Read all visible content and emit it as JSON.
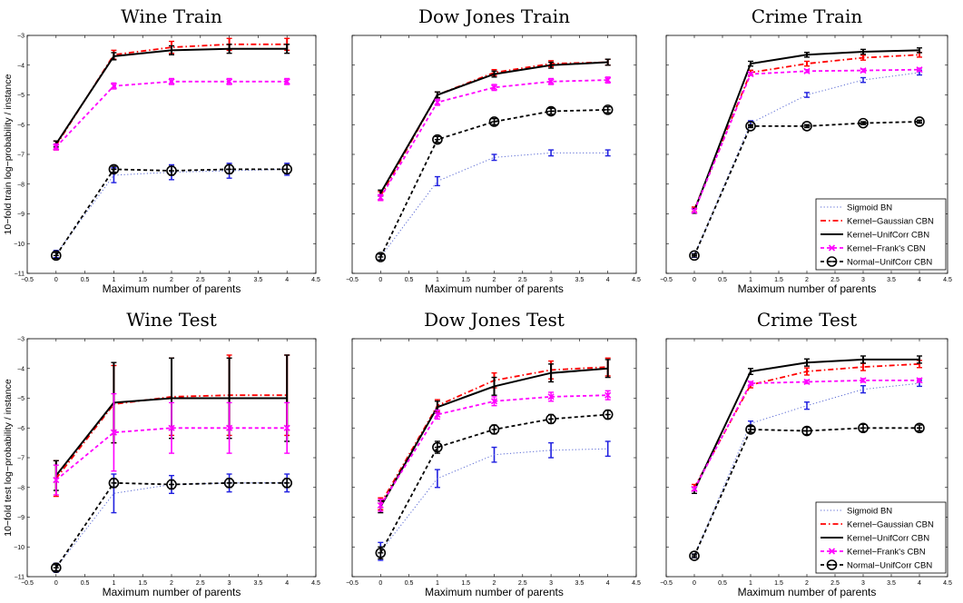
{
  "chart_data": [
    {
      "type": "line",
      "title": "Wine Train",
      "xlabel": "Maximum number of parents",
      "ylabel": "10−fold train log−probability / instance",
      "xlim": [
        -0.5,
        4.5
      ],
      "ylim": [
        -11,
        -3
      ],
      "x": [
        0,
        1,
        2,
        3,
        4
      ],
      "xtick_labels": [
        "−0.5",
        "0",
        "0.5",
        "1",
        "1.5",
        "2",
        "2.5",
        "3",
        "3.5",
        "4",
        "4.5"
      ],
      "ytick_labels": [
        "−11",
        "−10",
        "−9",
        "−8",
        "−7",
        "−6",
        "−5",
        "−4",
        "−3"
      ],
      "show_legend": false,
      "series": [
        {
          "name": "Sigmoid BN",
          "values": [
            -10.35,
            -7.7,
            -7.6,
            -7.55,
            -7.5
          ],
          "errors": [
            0.12,
            0.25,
            0.25,
            0.25,
            0.2
          ]
        },
        {
          "name": "Kernel−Gaussian CBN",
          "values": [
            -6.7,
            -3.65,
            -3.4,
            -3.3,
            -3.3
          ],
          "errors": [
            0.15,
            0.15,
            0.2,
            0.2,
            0.2
          ]
        },
        {
          "name": "Kernel−UnifCorr CBN",
          "values": [
            -6.65,
            -3.7,
            -3.5,
            -3.45,
            -3.45
          ],
          "errors": [
            0.1,
            0.12,
            0.15,
            0.15,
            0.15
          ]
        },
        {
          "name": "Kernel−Frank's CBN",
          "values": [
            -6.75,
            -4.7,
            -4.55,
            -4.55,
            -4.55
          ],
          "errors": [
            0.1,
            0.1,
            0.1,
            0.1,
            0.1
          ]
        },
        {
          "name": "Normal−UnifCorr CBN",
          "values": [
            -10.4,
            -7.5,
            -7.55,
            -7.5,
            -7.5
          ],
          "errors": [
            0.1,
            0.1,
            0.15,
            0.15,
            0.15
          ]
        }
      ]
    },
    {
      "type": "line",
      "title": "Dow Jones Train",
      "xlabel": "Maximum number of parents",
      "ylabel": "",
      "xlim": [
        -0.5,
        4.5
      ],
      "ylim": [
        0,
        8
      ],
      "x": [
        0,
        1,
        2,
        3,
        4
      ],
      "xtick_labels": [
        "−0.5",
        "0",
        "0.5",
        "1",
        "1.5",
        "2",
        "2.5",
        "3",
        "3.5",
        "4",
        "4.5"
      ],
      "ytick_labels": [],
      "show_legend": false,
      "series": [
        {
          "name": "Sigmoid BN",
          "values": [
            0.55,
            3.1,
            3.9,
            4.05,
            4.05
          ],
          "errors": [
            0.1,
            0.15,
            0.1,
            0.1,
            0.1
          ]
        },
        {
          "name": "Kernel−Gaussian CBN",
          "values": [
            2.6,
            6.0,
            6.75,
            7.05,
            7.1
          ],
          "errors": [
            0.15,
            0.1,
            0.1,
            0.1,
            0.1
          ]
        },
        {
          "name": "Kernel−UnifCorr CBN",
          "values": [
            2.7,
            6.0,
            6.7,
            7.0,
            7.1
          ],
          "errors": [
            0.1,
            0.1,
            0.1,
            0.1,
            0.1
          ]
        },
        {
          "name": "Kernel−Frank's CBN",
          "values": [
            2.55,
            5.75,
            6.25,
            6.45,
            6.5
          ],
          "errors": [
            0.1,
            0.1,
            0.1,
            0.1,
            0.1
          ]
        },
        {
          "name": "Normal−UnifCorr CBN",
          "values": [
            0.55,
            4.5,
            5.1,
            5.45,
            5.5
          ],
          "errors": [
            0.1,
            0.1,
            0.1,
            0.1,
            0.1
          ]
        }
      ]
    },
    {
      "type": "line",
      "title": "Crime Train",
      "xlabel": "Maximum number of parents",
      "ylabel": "",
      "xlim": [
        -0.5,
        4.5
      ],
      "ylim": [
        0,
        8
      ],
      "x": [
        0,
        1,
        2,
        3,
        4
      ],
      "xtick_labels": [
        "−0.5",
        "0",
        "0.5",
        "1",
        "1.5",
        "2",
        "2.5",
        "3",
        "3.5",
        "4",
        "4.5"
      ],
      "ytick_labels": [],
      "show_legend": true,
      "legend_position": "bottom-right",
      "series": [
        {
          "name": "Sigmoid BN",
          "values": [
            0.6,
            5.05,
            6.0,
            6.5,
            6.75
          ],
          "errors": [
            0.06,
            0.08,
            0.08,
            0.08,
            0.08
          ]
        },
        {
          "name": "Kernel−Gaussian CBN",
          "values": [
            2.15,
            6.75,
            7.05,
            7.25,
            7.35
          ],
          "errors": [
            0.08,
            0.08,
            0.08,
            0.08,
            0.08
          ]
        },
        {
          "name": "Kernel−UnifCorr CBN",
          "values": [
            2.1,
            7.05,
            7.35,
            7.45,
            7.5
          ],
          "errors": [
            0.08,
            0.08,
            0.08,
            0.08,
            0.08
          ]
        },
        {
          "name": "Kernel−Frank's CBN",
          "values": [
            2.1,
            6.7,
            6.8,
            6.82,
            6.85
          ],
          "errors": [
            0.05,
            0.05,
            0.05,
            0.05,
            0.05
          ]
        },
        {
          "name": "Normal−UnifCorr CBN",
          "values": [
            0.6,
            4.95,
            4.95,
            5.05,
            5.1
          ],
          "errors": [
            0.05,
            0.05,
            0.05,
            0.05,
            0.05
          ]
        }
      ]
    },
    {
      "type": "line",
      "title": "Wine Test",
      "xlabel": "Maximum number of parents",
      "ylabel": "10−fold test log−probability / instance",
      "xlim": [
        -0.5,
        4.5
      ],
      "ylim": [
        -11,
        -3
      ],
      "x": [
        0,
        1,
        2,
        3,
        4
      ],
      "xtick_labels": [
        "−0.5",
        "0",
        "0.5",
        "1",
        "1.5",
        "2",
        "2.5",
        "3",
        "3.5",
        "4",
        "4.5"
      ],
      "ytick_labels": [
        "−11",
        "−10",
        "−9",
        "−8",
        "−7",
        "−6",
        "−5",
        "−4",
        "−3"
      ],
      "show_legend": false,
      "series": [
        {
          "name": "Sigmoid BN",
          "values": [
            -10.7,
            -8.2,
            -7.9,
            -7.85,
            -7.85
          ],
          "errors": [
            0.15,
            0.65,
            0.3,
            0.3,
            0.3
          ]
        },
        {
          "name": "Kernel−Gaussian CBN",
          "values": [
            -7.7,
            -5.2,
            -4.95,
            -4.9,
            -4.9
          ],
          "errors": [
            0.6,
            1.3,
            1.3,
            1.35,
            1.35
          ]
        },
        {
          "name": "Kernel−UnifCorr CBN",
          "values": [
            -7.6,
            -5.15,
            -5.0,
            -5.0,
            -5.0
          ],
          "errors": [
            0.5,
            1.35,
            1.35,
            1.35,
            1.45
          ]
        },
        {
          "name": "Kernel−Frank's CBN",
          "values": [
            -7.75,
            -6.15,
            -6.0,
            -6.0,
            -6.0
          ],
          "errors": [
            0.5,
            1.3,
            0.85,
            0.85,
            0.85
          ]
        },
        {
          "name": "Normal−UnifCorr CBN",
          "values": [
            -10.7,
            -7.85,
            -7.9,
            -7.85,
            -7.85
          ],
          "errors": [
            0.1,
            0.15,
            0.15,
            0.15,
            0.15
          ]
        }
      ]
    },
    {
      "type": "line",
      "title": "Dow Jones Test",
      "xlabel": "Maximum number of parents",
      "ylabel": "",
      "xlim": [
        -0.5,
        4.5
      ],
      "ylim": [
        0,
        8
      ],
      "x": [
        0,
        1,
        2,
        3,
        4
      ],
      "xtick_labels": [
        "−0.5",
        "0",
        "0.5",
        "1",
        "1.5",
        "2",
        "2.5",
        "3",
        "3.5",
        "4",
        "4.5"
      ],
      "ytick_labels": [],
      "show_legend": false,
      "series": [
        {
          "name": "Sigmoid BN",
          "values": [
            0.85,
            3.3,
            4.1,
            4.25,
            4.3
          ],
          "errors": [
            0.3,
            0.3,
            0.25,
            0.25,
            0.25
          ]
        },
        {
          "name": "Kernel−Gaussian CBN",
          "values": [
            2.45,
            5.75,
            6.6,
            6.95,
            7.05
          ],
          "errors": [
            0.2,
            0.2,
            0.25,
            0.3,
            0.3
          ]
        },
        {
          "name": "Kernel−UnifCorr CBN",
          "values": [
            2.35,
            5.7,
            6.4,
            6.85,
            7.0
          ],
          "errors": [
            0.2,
            0.2,
            0.3,
            0.3,
            0.3
          ]
        },
        {
          "name": "Kernel−Frank's CBN",
          "values": [
            2.4,
            5.45,
            5.9,
            6.05,
            6.1
          ],
          "errors": [
            0.2,
            0.15,
            0.15,
            0.15,
            0.15
          ]
        },
        {
          "name": "Normal−UnifCorr CBN",
          "values": [
            0.8,
            4.35,
            4.95,
            5.3,
            5.45
          ],
          "errors": [
            0.2,
            0.2,
            0.15,
            0.15,
            0.15
          ]
        }
      ]
    },
    {
      "type": "line",
      "title": "Crime Test",
      "xlabel": "Maximum number of parents",
      "ylabel": "",
      "xlim": [
        -0.5,
        4.5
      ],
      "ylim": [
        0,
        8
      ],
      "x": [
        0,
        1,
        2,
        3,
        4
      ],
      "xtick_labels": [
        "−0.5",
        "0",
        "0.5",
        "1",
        "1.5",
        "2",
        "2.5",
        "3",
        "3.5",
        "4",
        "4.5"
      ],
      "ytick_labels": [],
      "show_legend": true,
      "legend_position": "bottom-right",
      "series": [
        {
          "name": "Sigmoid BN",
          "values": [
            0.7,
            5.15,
            5.75,
            6.3,
            6.5
          ],
          "errors": [
            0.06,
            0.08,
            0.12,
            0.12,
            0.1
          ]
        },
        {
          "name": "Kernel−Gaussian CBN",
          "values": [
            3.0,
            6.45,
            6.9,
            7.05,
            7.15
          ],
          "errors": [
            0.1,
            0.1,
            0.12,
            0.12,
            0.12
          ]
        },
        {
          "name": "Kernel−UnifCorr CBN",
          "values": [
            2.9,
            6.9,
            7.2,
            7.3,
            7.3
          ],
          "errors": [
            0.1,
            0.1,
            0.12,
            0.12,
            0.12
          ]
        },
        {
          "name": "Kernel−Frank's CBN",
          "values": [
            2.95,
            6.5,
            6.55,
            6.6,
            6.6
          ],
          "errors": [
            0.06,
            0.06,
            0.06,
            0.06,
            0.06
          ]
        },
        {
          "name": "Normal−UnifCorr CBN",
          "values": [
            0.7,
            4.95,
            4.9,
            5.0,
            5.0
          ],
          "errors": [
            0.06,
            0.1,
            0.12,
            0.12,
            0.1
          ]
        }
      ]
    }
  ],
  "styles": {
    "Sigmoid BN": {
      "color": "#5a6ad4",
      "dash": "1.2,2.4",
      "width": 1.0,
      "marker": "none",
      "error_color": "#2020e0"
    },
    "Kernel−Gaussian CBN": {
      "color": "#ff0000",
      "dash": "6,3,1.5,3",
      "width": 1.8,
      "marker": "none",
      "error_color": "#ff0000"
    },
    "Kernel−UnifCorr CBN": {
      "color": "#000000",
      "dash": "",
      "width": 2.0,
      "marker": "none",
      "error_color": "#000000"
    },
    "Kernel−Frank's CBN": {
      "color": "#ff00ff",
      "dash": "4,3",
      "width": 1.8,
      "marker": "x",
      "error_color": "#ff00ff"
    },
    "Normal−UnifCorr CBN": {
      "color": "#000000",
      "dash": "4,3",
      "width": 1.8,
      "marker": "circle",
      "error_color": "#000000"
    }
  }
}
